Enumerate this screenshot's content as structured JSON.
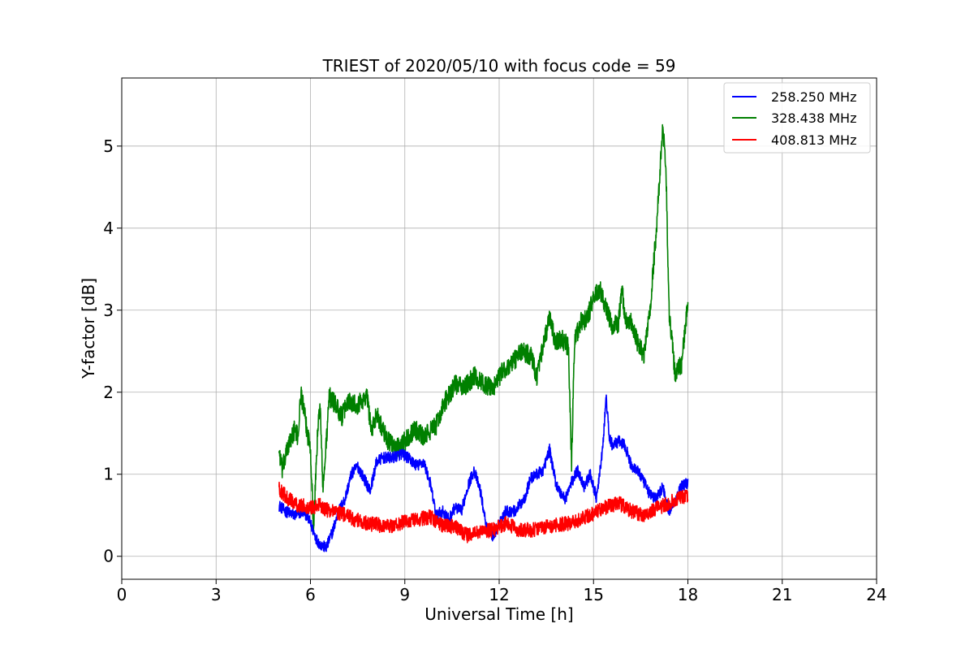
{
  "chart_data": {
    "type": "line",
    "title": "TRIEST of 2020/05/10 with focus code = 59",
    "xlabel": "Universal Time [h]",
    "ylabel": "Y-factor [dB]",
    "xlim": [
      0,
      24
    ],
    "ylim": [
      -0.28,
      5.83
    ],
    "xticks": [
      0,
      3,
      6,
      9,
      12,
      15,
      18,
      21,
      24
    ],
    "yticks": [
      0,
      1,
      2,
      3,
      4,
      5
    ],
    "grid": true,
    "legend_position": "top-right",
    "series": [
      {
        "name": "258.250 MHz",
        "color": "#0000ff",
        "noise": 0.07,
        "x": [
          5.0,
          5.2,
          5.5,
          5.8,
          6.0,
          6.1,
          6.2,
          6.3,
          6.5,
          6.7,
          6.9,
          7.1,
          7.3,
          7.5,
          7.7,
          7.9,
          8.1,
          8.3,
          8.6,
          8.9,
          9.1,
          9.4,
          9.6,
          9.8,
          10.0,
          10.2,
          10.4,
          10.6,
          10.8,
          11.0,
          11.2,
          11.4,
          11.6,
          11.8,
          12.0,
          12.2,
          12.5,
          12.8,
          13.0,
          13.2,
          13.4,
          13.6,
          13.8,
          13.9,
          14.1,
          14.3,
          14.5,
          14.7,
          14.9,
          15.1,
          15.3,
          15.4,
          15.5,
          15.6,
          15.8,
          16.0,
          16.2,
          16.4,
          16.6,
          16.8,
          17.0,
          17.2,
          17.4,
          17.6,
          17.8,
          18.0
        ],
        "y": [
          0.62,
          0.55,
          0.5,
          0.55,
          0.4,
          0.3,
          0.2,
          0.15,
          0.1,
          0.3,
          0.55,
          0.7,
          1.0,
          1.1,
          0.95,
          0.8,
          1.15,
          1.2,
          1.2,
          1.25,
          1.2,
          1.1,
          1.15,
          0.9,
          0.5,
          0.55,
          0.45,
          0.6,
          0.55,
          0.85,
          1.05,
          0.8,
          0.35,
          0.25,
          0.4,
          0.55,
          0.55,
          0.7,
          0.95,
          1.0,
          1.05,
          1.3,
          0.9,
          0.8,
          0.7,
          0.9,
          1.05,
          0.85,
          1.0,
          0.7,
          1.35,
          1.95,
          1.45,
          1.35,
          1.4,
          1.35,
          1.1,
          1.05,
          0.9,
          0.75,
          0.7,
          0.85,
          0.55,
          0.7,
          0.85,
          0.9
        ]
      },
      {
        "name": "328.438 MHz",
        "color": "#008000",
        "noise": 0.12,
        "x": [
          5.0,
          5.1,
          5.3,
          5.5,
          5.6,
          5.7,
          5.9,
          6.0,
          6.1,
          6.2,
          6.3,
          6.4,
          6.6,
          6.8,
          7.0,
          7.2,
          7.5,
          7.8,
          7.95,
          8.1,
          8.4,
          8.7,
          9.0,
          9.3,
          9.6,
          10.0,
          10.3,
          10.6,
          10.9,
          11.2,
          11.5,
          11.8,
          12.1,
          12.4,
          12.7,
          13.0,
          13.2,
          13.4,
          13.6,
          13.8,
          14.0,
          14.2,
          14.3,
          14.4,
          14.6,
          14.8,
          15.0,
          15.2,
          15.4,
          15.6,
          15.8,
          15.9,
          16.0,
          16.2,
          16.4,
          16.6,
          16.8,
          17.0,
          17.2,
          17.3,
          17.4,
          17.6,
          17.8,
          18.0
        ],
        "y": [
          1.3,
          1.05,
          1.35,
          1.55,
          1.45,
          2.0,
          1.5,
          1.35,
          0.3,
          1.3,
          1.9,
          0.8,
          1.95,
          1.85,
          1.7,
          1.9,
          1.85,
          1.95,
          1.5,
          1.75,
          1.45,
          1.3,
          1.4,
          1.55,
          1.45,
          1.6,
          1.9,
          2.1,
          2.05,
          2.2,
          2.1,
          2.05,
          2.25,
          2.35,
          2.5,
          2.45,
          2.2,
          2.55,
          2.9,
          2.6,
          2.65,
          2.55,
          1.1,
          2.65,
          2.85,
          2.9,
          3.15,
          3.25,
          3.0,
          2.8,
          2.85,
          3.3,
          2.9,
          2.85,
          2.6,
          2.45,
          3.0,
          4.0,
          5.2,
          4.8,
          3.0,
          2.2,
          2.35,
          3.1
        ]
      },
      {
        "name": "408.813 MHz",
        "color": "#ff0000",
        "noise": 0.09,
        "x": [
          5.0,
          5.3,
          5.6,
          6.0,
          6.3,
          6.6,
          7.0,
          7.4,
          7.8,
          8.2,
          8.6,
          9.0,
          9.4,
          9.8,
          10.2,
          10.6,
          11.0,
          11.4,
          11.8,
          12.2,
          12.6,
          13.0,
          13.4,
          13.8,
          14.2,
          14.6,
          15.0,
          15.4,
          15.8,
          16.2,
          16.6,
          17.0,
          17.4,
          17.8,
          18.0
        ],
        "y": [
          0.82,
          0.7,
          0.62,
          0.6,
          0.62,
          0.55,
          0.52,
          0.45,
          0.4,
          0.38,
          0.37,
          0.42,
          0.45,
          0.48,
          0.38,
          0.36,
          0.25,
          0.3,
          0.32,
          0.4,
          0.33,
          0.32,
          0.35,
          0.38,
          0.4,
          0.45,
          0.52,
          0.6,
          0.65,
          0.55,
          0.5,
          0.58,
          0.65,
          0.72,
          0.75
        ]
      }
    ]
  }
}
